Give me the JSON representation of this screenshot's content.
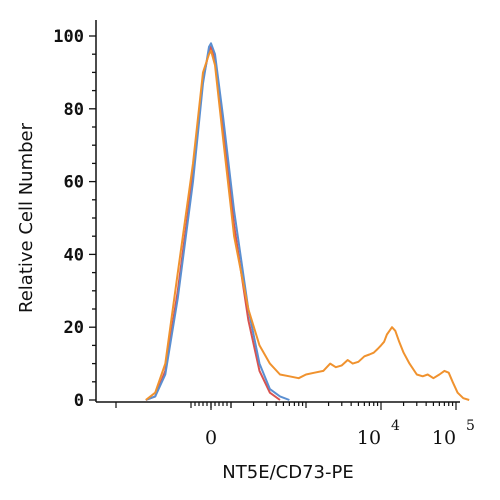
{
  "chart_data": {
    "type": "line",
    "title": "",
    "xlabel": "NT5E/CD73-PE",
    "ylabel": "Relative Cell Number",
    "x_scale": "biexponential",
    "xlim": [
      -2000,
      200000
    ],
    "ylim": [
      0,
      100
    ],
    "grid": false,
    "legend": "none",
    "y_ticks": [
      0,
      20,
      40,
      60,
      80,
      100
    ],
    "y_tick_labels": [
      "0",
      "20",
      "40",
      "60",
      "80",
      "100"
    ],
    "x_tick_labels": [
      {
        "x": 0,
        "base": "0",
        "exp": ""
      },
      {
        "x": 10000,
        "base": "10",
        "exp": "4"
      },
      {
        "x": 100000,
        "base": "10",
        "exp": "5"
      }
    ],
    "colors": {
      "isotype_red": "#d9534f",
      "isotype_blue": "#5b8fd1",
      "stained_orange": "#f0922e",
      "axis": "#111111"
    },
    "series": [
      {
        "color": "#d9534f",
        "points": [
          [
            -400,
            0
          ],
          [
            -300,
            1
          ],
          [
            -220,
            8
          ],
          [
            -150,
            30
          ],
          [
            -90,
            62
          ],
          [
            -40,
            88
          ],
          [
            -10,
            96
          ],
          [
            0,
            97
          ],
          [
            20,
            93
          ],
          [
            60,
            75
          ],
          [
            110,
            48
          ],
          [
            170,
            22
          ],
          [
            240,
            8
          ],
          [
            330,
            2
          ],
          [
            450,
            0
          ]
        ]
      },
      {
        "color": "#5b8fd1",
        "points": [
          [
            -400,
            0
          ],
          [
            -300,
            1
          ],
          [
            -220,
            7
          ],
          [
            -150,
            28
          ],
          [
            -90,
            60
          ],
          [
            -40,
            87
          ],
          [
            -10,
            97
          ],
          [
            0,
            98
          ],
          [
            20,
            95
          ],
          [
            60,
            78
          ],
          [
            110,
            52
          ],
          [
            170,
            25
          ],
          [
            240,
            10
          ],
          [
            330,
            3
          ],
          [
            450,
            1
          ],
          [
            600,
            0
          ]
        ]
      },
      {
        "color": "#f0922e",
        "points": [
          [
            -400,
            0
          ],
          [
            -300,
            2
          ],
          [
            -220,
            10
          ],
          [
            -150,
            35
          ],
          [
            -90,
            65
          ],
          [
            -40,
            90
          ],
          [
            -10,
            95
          ],
          [
            0,
            96
          ],
          [
            20,
            92
          ],
          [
            60,
            72
          ],
          [
            110,
            45
          ],
          [
            170,
            25
          ],
          [
            240,
            15
          ],
          [
            330,
            10
          ],
          [
            450,
            7
          ],
          [
            600,
            6.5
          ],
          [
            800,
            6
          ],
          [
            1000,
            7
          ],
          [
            1300,
            7.5
          ],
          [
            1700,
            8
          ],
          [
            2100,
            10
          ],
          [
            2500,
            9
          ],
          [
            3000,
            9.5
          ],
          [
            3600,
            11
          ],
          [
            4200,
            10
          ],
          [
            5000,
            10.5
          ],
          [
            6000,
            12
          ],
          [
            7000,
            12.5
          ],
          [
            8000,
            13
          ],
          [
            9000,
            14
          ],
          [
            10000,
            15
          ],
          [
            11000,
            16
          ],
          [
            12000,
            18
          ],
          [
            13000,
            19
          ],
          [
            14000,
            20
          ],
          [
            15500,
            19
          ],
          [
            17500,
            16
          ],
          [
            20000,
            13
          ],
          [
            24000,
            10
          ],
          [
            30000,
            7
          ],
          [
            36000,
            6.5
          ],
          [
            42000,
            7
          ],
          [
            50000,
            6
          ],
          [
            60000,
            7
          ],
          [
            70000,
            8
          ],
          [
            80000,
            7.5
          ],
          [
            90000,
            5
          ],
          [
            105000,
            2
          ],
          [
            125000,
            0.5
          ],
          [
            150000,
            0
          ]
        ]
      }
    ]
  }
}
